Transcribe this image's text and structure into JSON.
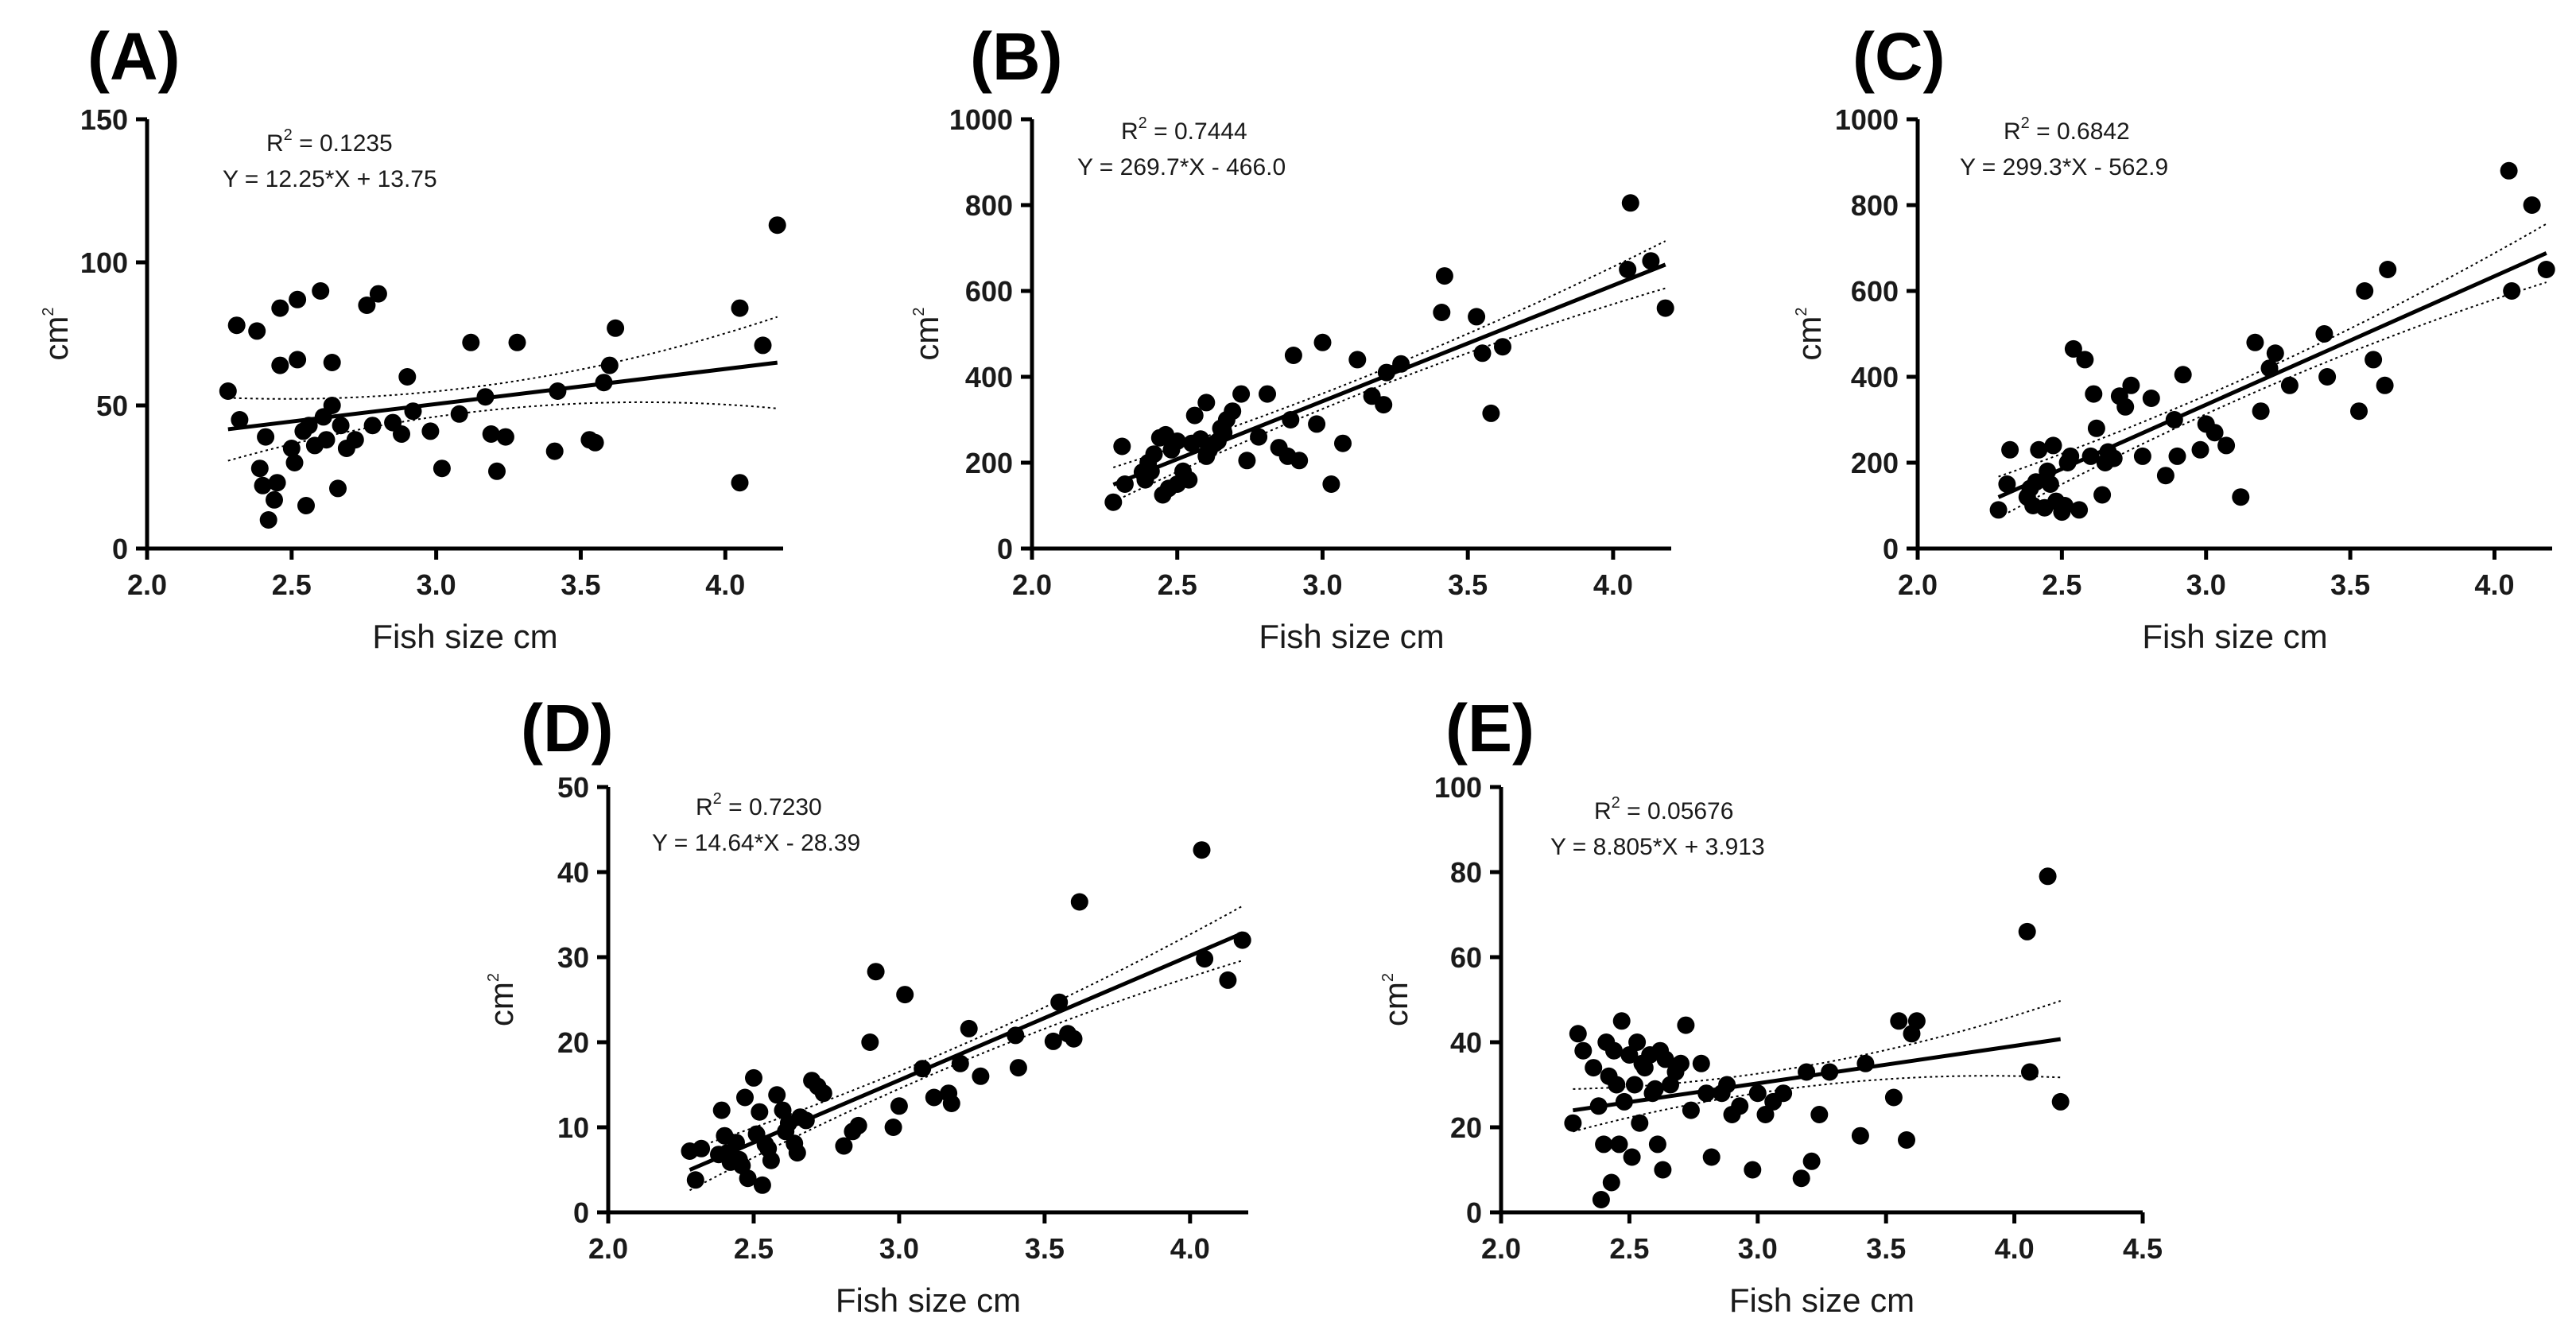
{
  "chart_data": [
    {
      "type": "scatter",
      "panel": "(A)",
      "xlabel": "Fish size cm",
      "ylabel": "cm",
      "ylabel_sup": "2",
      "xlim": [
        2.0,
        4.2
      ],
      "ylim": [
        0,
        150
      ],
      "xticks": [
        2.0,
        2.5,
        3.0,
        3.5,
        4.0
      ],
      "xtick_labels": [
        "2.0",
        "2.5",
        "3.0",
        "3.5",
        "4.0"
      ],
      "yticks": [
        0,
        50,
        100,
        150
      ],
      "ytick_labels": [
        "0",
        "50",
        "100",
        "150"
      ],
      "annotation": {
        "r2_prefix": "R",
        "r2_sup": "2",
        "r2_value": "= 0.1235",
        "equation": "Y = 12.25*X + 13.75"
      },
      "fit": {
        "slope": 12.25,
        "intercept": 13.75,
        "x_range": [
          2.28,
          4.18
        ],
        "ci_halfwidth": [
          11,
          4.5,
          16
        ]
      },
      "grid": false,
      "points": [
        [
          2.28,
          55
        ],
        [
          2.31,
          78
        ],
        [
          2.32,
          45
        ],
        [
          2.38,
          76
        ],
        [
          2.39,
          28
        ],
        [
          2.4,
          22
        ],
        [
          2.41,
          39
        ],
        [
          2.42,
          10
        ],
        [
          2.44,
          17
        ],
        [
          2.45,
          23
        ],
        [
          2.46,
          64
        ],
        [
          2.46,
          84
        ],
        [
          2.5,
          35
        ],
        [
          2.51,
          30
        ],
        [
          2.52,
          66
        ],
        [
          2.52,
          87
        ],
        [
          2.54,
          41
        ],
        [
          2.55,
          15
        ],
        [
          2.56,
          43
        ],
        [
          2.58,
          36
        ],
        [
          2.6,
          90
        ],
        [
          2.61,
          46
        ],
        [
          2.62,
          38
        ],
        [
          2.64,
          65
        ],
        [
          2.64,
          50
        ],
        [
          2.66,
          21
        ],
        [
          2.67,
          43
        ],
        [
          2.69,
          35
        ],
        [
          2.72,
          38
        ],
        [
          2.76,
          85
        ],
        [
          2.78,
          43
        ],
        [
          2.8,
          89
        ],
        [
          2.85,
          44
        ],
        [
          2.88,
          40
        ],
        [
          2.9,
          60
        ],
        [
          2.92,
          48
        ],
        [
          2.98,
          41
        ],
        [
          3.02,
          28
        ],
        [
          3.08,
          47
        ],
        [
          3.12,
          72
        ],
        [
          3.17,
          53
        ],
        [
          3.19,
          40
        ],
        [
          3.21,
          27
        ],
        [
          3.24,
          39
        ],
        [
          3.28,
          72
        ],
        [
          3.41,
          34
        ],
        [
          3.42,
          55
        ],
        [
          3.53,
          38
        ],
        [
          3.55,
          37
        ],
        [
          3.58,
          58
        ],
        [
          3.6,
          64
        ],
        [
          3.62,
          77
        ],
        [
          4.05,
          84
        ],
        [
          4.05,
          23
        ],
        [
          4.13,
          71
        ],
        [
          4.18,
          113
        ]
      ]
    },
    {
      "type": "scatter",
      "panel": "(B)",
      "xlabel": "Fish size cm",
      "ylabel": "cm",
      "ylabel_sup": "2",
      "xlim": [
        2.0,
        4.2
      ],
      "ylim": [
        0,
        1000
      ],
      "xticks": [
        2.0,
        2.5,
        3.0,
        3.5,
        4.0
      ],
      "xtick_labels": [
        "2.0",
        "2.5",
        "3.0",
        "3.5",
        "4.0"
      ],
      "yticks": [
        0,
        200,
        400,
        600,
        800,
        1000
      ],
      "ytick_labels": [
        "0",
        "200",
        "400",
        "600",
        "800",
        "1000"
      ],
      "annotation": {
        "r2_prefix": "R",
        "r2_sup": "2",
        "r2_value": "= 0.7444",
        "equation": "Y = 269.7*X - 466.0"
      },
      "fit": {
        "slope": 269.7,
        "intercept": -466.0,
        "x_range": [
          2.28,
          4.18
        ],
        "ci_halfwidth": [
          40,
          18,
          55
        ]
      },
      "grid": false,
      "points": [
        [
          2.28,
          108
        ],
        [
          2.31,
          238
        ],
        [
          2.32,
          150
        ],
        [
          2.38,
          178
        ],
        [
          2.39,
          160
        ],
        [
          2.4,
          200
        ],
        [
          2.41,
          180
        ],
        [
          2.42,
          220
        ],
        [
          2.44,
          258
        ],
        [
          2.45,
          125
        ],
        [
          2.46,
          265
        ],
        [
          2.47,
          140
        ],
        [
          2.48,
          230
        ],
        [
          2.5,
          150
        ],
        [
          2.5,
          250
        ],
        [
          2.52,
          180
        ],
        [
          2.54,
          160
        ],
        [
          2.55,
          245
        ],
        [
          2.56,
          310
        ],
        [
          2.58,
          255
        ],
        [
          2.6,
          215
        ],
        [
          2.6,
          340
        ],
        [
          2.61,
          230
        ],
        [
          2.63,
          245
        ],
        [
          2.64,
          250
        ],
        [
          2.65,
          280
        ],
        [
          2.66,
          270
        ],
        [
          2.67,
          300
        ],
        [
          2.69,
          320
        ],
        [
          2.72,
          360
        ],
        [
          2.74,
          205
        ],
        [
          2.78,
          260
        ],
        [
          2.81,
          360
        ],
        [
          2.85,
          235
        ],
        [
          2.88,
          215
        ],
        [
          2.89,
          300
        ],
        [
          2.9,
          450
        ],
        [
          2.92,
          205
        ],
        [
          2.98,
          290
        ],
        [
          3.0,
          480
        ],
        [
          3.03,
          150
        ],
        [
          3.07,
          245
        ],
        [
          3.12,
          440
        ],
        [
          3.17,
          355
        ],
        [
          3.21,
          335
        ],
        [
          3.22,
          410
        ],
        [
          3.27,
          430
        ],
        [
          3.41,
          550
        ],
        [
          3.42,
          635
        ],
        [
          3.53,
          540
        ],
        [
          3.55,
          455
        ],
        [
          3.58,
          315
        ],
        [
          3.62,
          470
        ],
        [
          4.05,
          650
        ],
        [
          4.06,
          805
        ],
        [
          4.13,
          670
        ],
        [
          4.18,
          560
        ]
      ]
    },
    {
      "type": "scatter",
      "panel": "(C)",
      "xlabel": "Fish size cm",
      "ylabel": "cm",
      "ylabel_sup": "2",
      "xlim": [
        2.0,
        4.2
      ],
      "ylim": [
        0,
        1000
      ],
      "xticks": [
        2.0,
        2.5,
        3.0,
        3.5,
        4.0
      ],
      "xtick_labels": [
        "2.0",
        "2.5",
        "3.0",
        "3.5",
        "4.0"
      ],
      "yticks": [
        0,
        200,
        400,
        600,
        800,
        1000
      ],
      "ytick_labels": [
        "0",
        "200",
        "400",
        "600",
        "800",
        "1000"
      ],
      "annotation": {
        "r2_prefix": "R",
        "r2_sup": "2",
        "r2_value": "= 0.6842",
        "equation": "Y = 299.3*X - 562.9"
      },
      "fit": {
        "slope": 299.3,
        "intercept": -562.9,
        "x_range": [
          2.28,
          4.18
        ],
        "ci_halfwidth": [
          48,
          22,
          68
        ]
      },
      "grid": false,
      "points": [
        [
          2.28,
          90
        ],
        [
          2.31,
          150
        ],
        [
          2.32,
          230
        ],
        [
          2.38,
          120
        ],
        [
          2.39,
          140
        ],
        [
          2.4,
          100
        ],
        [
          2.41,
          155
        ],
        [
          2.42,
          230
        ],
        [
          2.44,
          95
        ],
        [
          2.45,
          180
        ],
        [
          2.46,
          150
        ],
        [
          2.47,
          240
        ],
        [
          2.48,
          110
        ],
        [
          2.5,
          85
        ],
        [
          2.51,
          100
        ],
        [
          2.52,
          200
        ],
        [
          2.53,
          215
        ],
        [
          2.54,
          465
        ],
        [
          2.56,
          90
        ],
        [
          2.58,
          440
        ],
        [
          2.6,
          215
        ],
        [
          2.61,
          360
        ],
        [
          2.62,
          280
        ],
        [
          2.64,
          125
        ],
        [
          2.65,
          200
        ],
        [
          2.66,
          225
        ],
        [
          2.68,
          210
        ],
        [
          2.7,
          355
        ],
        [
          2.72,
          330
        ],
        [
          2.74,
          380
        ],
        [
          2.78,
          215
        ],
        [
          2.81,
          350
        ],
        [
          2.86,
          170
        ],
        [
          2.89,
          300
        ],
        [
          2.9,
          215
        ],
        [
          2.92,
          405
        ],
        [
          2.98,
          230
        ],
        [
          3.0,
          290
        ],
        [
          3.03,
          270
        ],
        [
          3.07,
          240
        ],
        [
          3.12,
          120
        ],
        [
          3.17,
          480
        ],
        [
          3.19,
          320
        ],
        [
          3.22,
          420
        ],
        [
          3.24,
          455
        ],
        [
          3.29,
          380
        ],
        [
          3.41,
          500
        ],
        [
          3.42,
          400
        ],
        [
          3.53,
          320
        ],
        [
          3.55,
          600
        ],
        [
          3.58,
          440
        ],
        [
          3.62,
          380
        ],
        [
          3.63,
          650
        ],
        [
          4.05,
          880
        ],
        [
          4.06,
          600
        ],
        [
          4.13,
          800
        ],
        [
          4.18,
          650
        ]
      ]
    },
    {
      "type": "scatter",
      "panel": "(D)",
      "xlabel": "Fish size cm",
      "ylabel": "cm",
      "ylabel_sup": "2",
      "xlim": [
        2.0,
        4.2
      ],
      "ylim": [
        0,
        50
      ],
      "xticks": [
        2.0,
        2.5,
        3.0,
        3.5,
        4.0
      ],
      "xtick_labels": [
        "2.0",
        "2.5",
        "3.0",
        "3.5",
        "4.0"
      ],
      "yticks": [
        0,
        10,
        20,
        30,
        40,
        50
      ],
      "ytick_labels": [
        "0",
        "10",
        "20",
        "30",
        "40",
        "50"
      ],
      "annotation": {
        "r2_prefix": "R",
        "r2_sup": "2",
        "r2_value": "= 0.7230",
        "equation": "Y = 14.64*X - 28.39"
      },
      "fit": {
        "slope": 14.64,
        "intercept": -28.39,
        "x_range": [
          2.28,
          4.18
        ],
        "ci_halfwidth": [
          2.4,
          1.0,
          3.2
        ]
      },
      "grid": false,
      "points": [
        [
          2.28,
          7.2
        ],
        [
          2.3,
          3.8
        ],
        [
          2.32,
          7.5
        ],
        [
          2.38,
          6.8
        ],
        [
          2.39,
          12
        ],
        [
          2.4,
          9
        ],
        [
          2.41,
          7
        ],
        [
          2.42,
          5.9
        ],
        [
          2.44,
          8.2
        ],
        [
          2.45,
          6.2
        ],
        [
          2.46,
          5.5
        ],
        [
          2.47,
          13.5
        ],
        [
          2.48,
          4
        ],
        [
          2.5,
          15.8
        ],
        [
          2.51,
          9.2
        ],
        [
          2.52,
          11.8
        ],
        [
          2.53,
          3.2
        ],
        [
          2.54,
          8
        ],
        [
          2.55,
          7.5
        ],
        [
          2.56,
          6.1
        ],
        [
          2.58,
          13.8
        ],
        [
          2.6,
          12
        ],
        [
          2.61,
          9.5
        ],
        [
          2.62,
          10.5
        ],
        [
          2.64,
          8.1
        ],
        [
          2.65,
          7
        ],
        [
          2.66,
          11.2
        ],
        [
          2.68,
          10.8
        ],
        [
          2.7,
          15.5
        ],
        [
          2.72,
          14.8
        ],
        [
          2.74,
          14
        ],
        [
          2.81,
          7.8
        ],
        [
          2.84,
          9.5
        ],
        [
          2.86,
          10.2
        ],
        [
          2.9,
          20
        ],
        [
          2.92,
          28.3
        ],
        [
          2.98,
          10
        ],
        [
          3.0,
          12.5
        ],
        [
          3.02,
          25.6
        ],
        [
          3.08,
          16.9
        ],
        [
          3.12,
          13.5
        ],
        [
          3.17,
          14
        ],
        [
          3.18,
          12.8
        ],
        [
          3.21,
          17.5
        ],
        [
          3.24,
          21.6
        ],
        [
          3.28,
          16
        ],
        [
          3.4,
          20.8
        ],
        [
          3.41,
          17
        ],
        [
          3.53,
          20.1
        ],
        [
          3.55,
          24.7
        ],
        [
          3.58,
          21
        ],
        [
          3.6,
          20.4
        ],
        [
          3.62,
          36.5
        ],
        [
          4.04,
          42.6
        ],
        [
          4.05,
          29.8
        ],
        [
          4.13,
          27.3
        ],
        [
          4.18,
          32
        ]
      ]
    },
    {
      "type": "scatter",
      "panel": "(E)",
      "xlabel": "Fish size cm",
      "ylabel": "cm",
      "ylabel_sup": "2",
      "xlim": [
        2.0,
        4.5
      ],
      "ylim": [
        0,
        100
      ],
      "xticks": [
        2.0,
        2.5,
        3.0,
        3.5,
        4.0,
        4.5
      ],
      "xtick_labels": [
        "2.0",
        "2.5",
        "3.0",
        "3.5",
        "4.0",
        "4.5"
      ],
      "yticks": [
        0,
        20,
        40,
        60,
        80,
        100
      ],
      "ytick_labels": [
        "0",
        "20",
        "40",
        "60",
        "80",
        "100"
      ],
      "annotation": {
        "r2_prefix": "R",
        "r2_sup": "2",
        "r2_value": "= 0.05676",
        "equation": "Y = 8.805*X + 3.913"
      },
      "fit": {
        "slope": 8.805,
        "intercept": 3.913,
        "x_range": [
          2.28,
          4.18
        ],
        "ci_halfwidth": [
          5,
          2.5,
          9
        ]
      },
      "grid": false,
      "points": [
        [
          2.28,
          21
        ],
        [
          2.3,
          42
        ],
        [
          2.32,
          38
        ],
        [
          2.36,
          34
        ],
        [
          2.38,
          25
        ],
        [
          2.39,
          3
        ],
        [
          2.4,
          16
        ],
        [
          2.41,
          40
        ],
        [
          2.42,
          32
        ],
        [
          2.43,
          7
        ],
        [
          2.44,
          38
        ],
        [
          2.45,
          30
        ],
        [
          2.46,
          16
        ],
        [
          2.47,
          45
        ],
        [
          2.48,
          26
        ],
        [
          2.5,
          37
        ],
        [
          2.51,
          13
        ],
        [
          2.52,
          30
        ],
        [
          2.53,
          40
        ],
        [
          2.54,
          21
        ],
        [
          2.55,
          35
        ],
        [
          2.56,
          34
        ],
        [
          2.58,
          37
        ],
        [
          2.59,
          28
        ],
        [
          2.6,
          29
        ],
        [
          2.61,
          16
        ],
        [
          2.62,
          38
        ],
        [
          2.63,
          10
        ],
        [
          2.64,
          36
        ],
        [
          2.66,
          30
        ],
        [
          2.68,
          33
        ],
        [
          2.7,
          35
        ],
        [
          2.72,
          44
        ],
        [
          2.74,
          24
        ],
        [
          2.78,
          35
        ],
        [
          2.8,
          28
        ],
        [
          2.82,
          13
        ],
        [
          2.86,
          28
        ],
        [
          2.88,
          30
        ],
        [
          2.9,
          23
        ],
        [
          2.93,
          25
        ],
        [
          2.98,
          10
        ],
        [
          3.0,
          28
        ],
        [
          3.03,
          23
        ],
        [
          3.06,
          26
        ],
        [
          3.1,
          28
        ],
        [
          3.17,
          8
        ],
        [
          3.19,
          33
        ],
        [
          3.21,
          12
        ],
        [
          3.24,
          23
        ],
        [
          3.28,
          33
        ],
        [
          3.4,
          18
        ],
        [
          3.42,
          35
        ],
        [
          3.53,
          27
        ],
        [
          3.55,
          45
        ],
        [
          3.58,
          17
        ],
        [
          3.6,
          42
        ],
        [
          3.62,
          45
        ],
        [
          4.05,
          66
        ],
        [
          4.06,
          33
        ],
        [
          4.13,
          79
        ],
        [
          4.18,
          26
        ]
      ]
    }
  ]
}
